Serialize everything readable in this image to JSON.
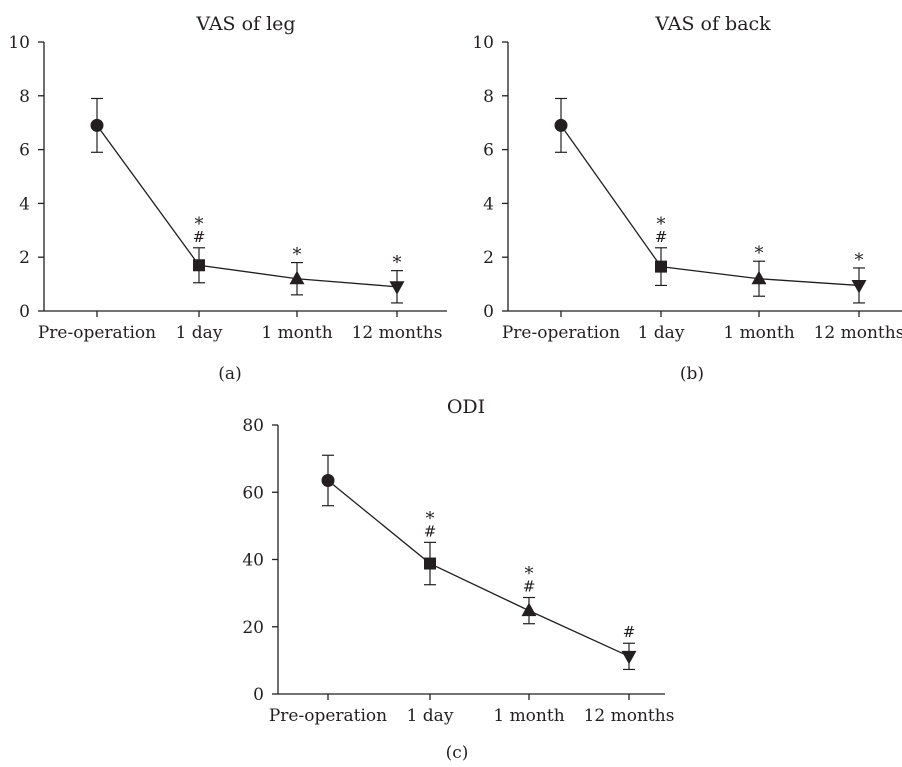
{
  "figure": {
    "panels": [
      {
        "id": "a",
        "title": "VAS of leg",
        "caption": "(a)"
      },
      {
        "id": "b",
        "title": "VAS of back",
        "caption": "(b)"
      },
      {
        "id": "c",
        "title": "ODI",
        "caption": "(c)"
      }
    ]
  },
  "chart_data": [
    {
      "type": "line",
      "title": "VAS of leg",
      "xlabel": "",
      "ylabel": "",
      "categories": [
        "Pre-operation",
        "1 day",
        "1 month",
        "12 months"
      ],
      "values": [
        6.9,
        1.7,
        1.2,
        0.9
      ],
      "error": [
        1.0,
        0.65,
        0.6,
        0.6
      ],
      "markers": [
        "circle",
        "square",
        "triangle-up",
        "triangle-down"
      ],
      "significance": [
        "",
        "*\n#",
        "*",
        "*"
      ],
      "ylim": [
        0,
        10
      ],
      "yticks": [
        0,
        2,
        4,
        6,
        8,
        10
      ],
      "grid": false
    },
    {
      "type": "line",
      "title": "VAS of back",
      "xlabel": "",
      "ylabel": "",
      "categories": [
        "Pre-operation",
        "1 day",
        "1 month",
        "12 months"
      ],
      "values": [
        6.9,
        1.65,
        1.2,
        0.95
      ],
      "error": [
        1.0,
        0.7,
        0.65,
        0.65
      ],
      "markers": [
        "circle",
        "square",
        "triangle-up",
        "triangle-down"
      ],
      "significance": [
        "",
        "*\n#",
        "*",
        "*"
      ],
      "ylim": [
        0,
        10
      ],
      "yticks": [
        0,
        2,
        4,
        6,
        8,
        10
      ],
      "grid": false
    },
    {
      "type": "line",
      "title": "ODI",
      "xlabel": "",
      "ylabel": "",
      "categories": [
        "Pre-operation",
        "1 day",
        "1 month",
        "12 months"
      ],
      "values": [
        63.5,
        38.8,
        24.8,
        11.2
      ],
      "error": [
        7.5,
        6.3,
        3.9,
        3.9
      ],
      "markers": [
        "circle",
        "square",
        "triangle-up",
        "triangle-down"
      ],
      "significance": [
        "",
        "*\n#",
        "*\n#",
        "#"
      ],
      "ylim": [
        0,
        80
      ],
      "yticks": [
        0,
        20,
        40,
        60,
        80
      ],
      "grid": false
    }
  ]
}
